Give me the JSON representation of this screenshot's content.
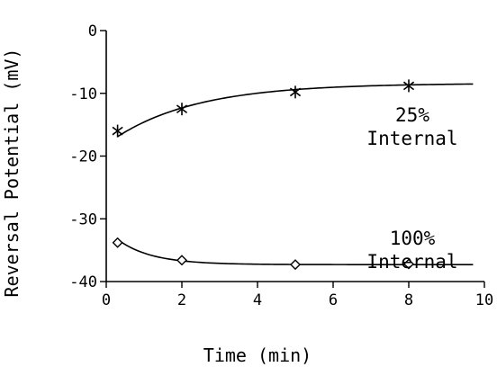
{
  "chart_data": {
    "type": "line",
    "title": "",
    "xlabel": "Time (min)",
    "ylabel": "Reversal Potential (mV)",
    "xlim": [
      0,
      10
    ],
    "ylim": [
      -40,
      0
    ],
    "xticks": [
      0,
      2,
      4,
      6,
      8,
      10
    ],
    "yticks": [
      0,
      -10,
      -20,
      -30,
      -40
    ],
    "xtick_labels": [
      "0",
      "2",
      "4",
      "6",
      "8",
      "10"
    ],
    "ytick_labels": [
      "0",
      "-10",
      "-20",
      "-30",
      "-40"
    ],
    "grid": false,
    "series": [
      {
        "name": "25% Internal",
        "marker": "asterisk",
        "points": [
          {
            "x": 0.3,
            "y": -16.0
          },
          {
            "x": 2.0,
            "y": -12.5
          },
          {
            "x": 5.0,
            "y": -9.8
          },
          {
            "x": 8.0,
            "y": -8.8
          }
        ],
        "fit": {
          "asymptote": -8.4,
          "amplitude": -8.5,
          "tau": 2.2
        }
      },
      {
        "name": "100% Internal",
        "marker": "diamond",
        "points": [
          {
            "x": 0.3,
            "y": -33.8
          },
          {
            "x": 2.0,
            "y": -36.6
          },
          {
            "x": 5.0,
            "y": -37.3
          },
          {
            "x": 8.0,
            "y": -37.2
          }
        ],
        "fit": {
          "asymptote": -37.3,
          "amplitude": 4.0,
          "tau": 0.9
        }
      }
    ],
    "annotations": [
      {
        "series": 0,
        "lines": [
          "25%",
          "Internal"
        ]
      },
      {
        "series": 1,
        "lines": [
          "100%",
          "Internal"
        ]
      }
    ]
  }
}
